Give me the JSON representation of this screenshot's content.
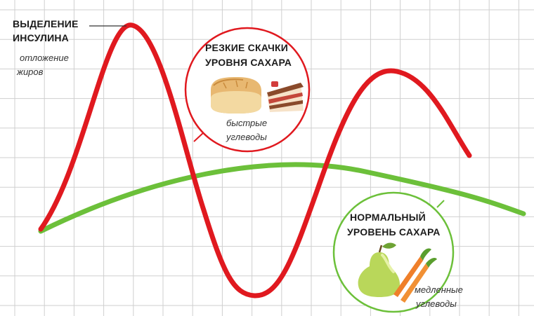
{
  "labels": {
    "insulin_line1": "ВЫДЕЛЕНИЕ",
    "insulin_line2": "ИНСУЛИНА",
    "fat_line1": "отложение",
    "fat_line2": "жиров",
    "spikes_line1": "РЕЗКИЕ СКАЧКИ",
    "spikes_line2": "УРОВНЯ САХАРА",
    "fast_line1": "быстрые",
    "fast_line2": "углеводы",
    "normal_line1": "НОРМАЛЬНЫЙ",
    "normal_line2": "УРОВЕНЬ САХАРА",
    "slow_line1": "медленные",
    "slow_line2": "углеводы"
  },
  "colors": {
    "background": "#ffffff",
    "grid": "#cfcfcf",
    "spike_curve": "#e0191f",
    "normal_curve": "#6cc03a",
    "spike_circle": "#e0191f",
    "normal_circle": "#6cc03a",
    "text": "#1c1c1c"
  },
  "icons": [
    "bread-icon",
    "cake-slice-icon",
    "pear-icon",
    "carrots-icon"
  ]
}
